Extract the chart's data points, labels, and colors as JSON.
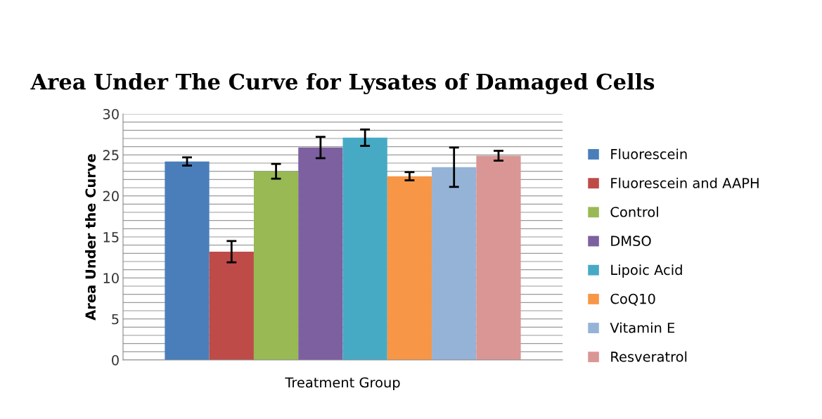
{
  "chart_data": {
    "type": "bar",
    "title": "Area Under The Curve for Lysates of Damaged Cells",
    "xlabel": "Treatment Group",
    "ylabel": "Area Under the Curve",
    "categories": [
      null
    ],
    "series": [
      {
        "name": "Fluorescein",
        "color": "#4a7ebb",
        "values": [
          24.2
        ],
        "errors": [
          0.5
        ]
      },
      {
        "name": "Fluorescein and AAPH",
        "color": "#be4b48",
        "values": [
          13.2
        ],
        "errors": [
          1.3
        ]
      },
      {
        "name": "Control",
        "color": "#98b954",
        "values": [
          23.0
        ],
        "errors": [
          0.9
        ]
      },
      {
        "name": "DMSO",
        "color": "#7d60a0",
        "values": [
          25.9
        ],
        "errors": [
          1.3
        ]
      },
      {
        "name": "Lipoic Acid",
        "color": "#46aac5",
        "values": [
          27.1
        ],
        "errors": [
          1.0
        ]
      },
      {
        "name": "CoQ10",
        "color": "#f79646",
        "values": [
          22.4
        ],
        "errors": [
          0.5
        ]
      },
      {
        "name": "Vitamin E",
        "color": "#95b3d7",
        "values": [
          23.5
        ],
        "errors": [
          2.4
        ]
      },
      {
        "name": "Resveratrol",
        "color": "#d99694",
        "values": [
          24.9
        ],
        "errors": [
          0.6
        ]
      }
    ],
    "ylim": [
      0,
      30
    ],
    "yticks": [
      0,
      {
        "value": 1,
        "label": null
      },
      {
        "value": 2,
        "label": null
      },
      {
        "value": 3,
        "label": null
      },
      {
        "value": 4,
        "label": null
      },
      5,
      {
        "value": 6,
        "label": null
      },
      {
        "value": 7,
        "label": null
      },
      {
        "value": 8,
        "label": null
      },
      {
        "value": 9,
        "label": null
      },
      10,
      {
        "value": 11,
        "label": null
      },
      {
        "value": 12,
        "label": null
      },
      {
        "value": 13,
        "label": null
      },
      {
        "value": 14,
        "label": null
      },
      15,
      {
        "value": 16,
        "label": null
      },
      {
        "value": 17,
        "label": null
      },
      {
        "value": 18,
        "label": null
      },
      {
        "value": 19,
        "label": null
      },
      20,
      {
        "value": 21,
        "label": null
      },
      {
        "value": 22,
        "label": null
      },
      {
        "value": 23,
        "label": null
      },
      {
        "value": 24,
        "label": null
      },
      25,
      {
        "value": 26,
        "label": null
      },
      {
        "value": 27,
        "label": null
      },
      {
        "value": 28,
        "label": null
      },
      {
        "value": 29,
        "label": null
      },
      30
    ],
    "grid": "y",
    "legend": "right"
  }
}
